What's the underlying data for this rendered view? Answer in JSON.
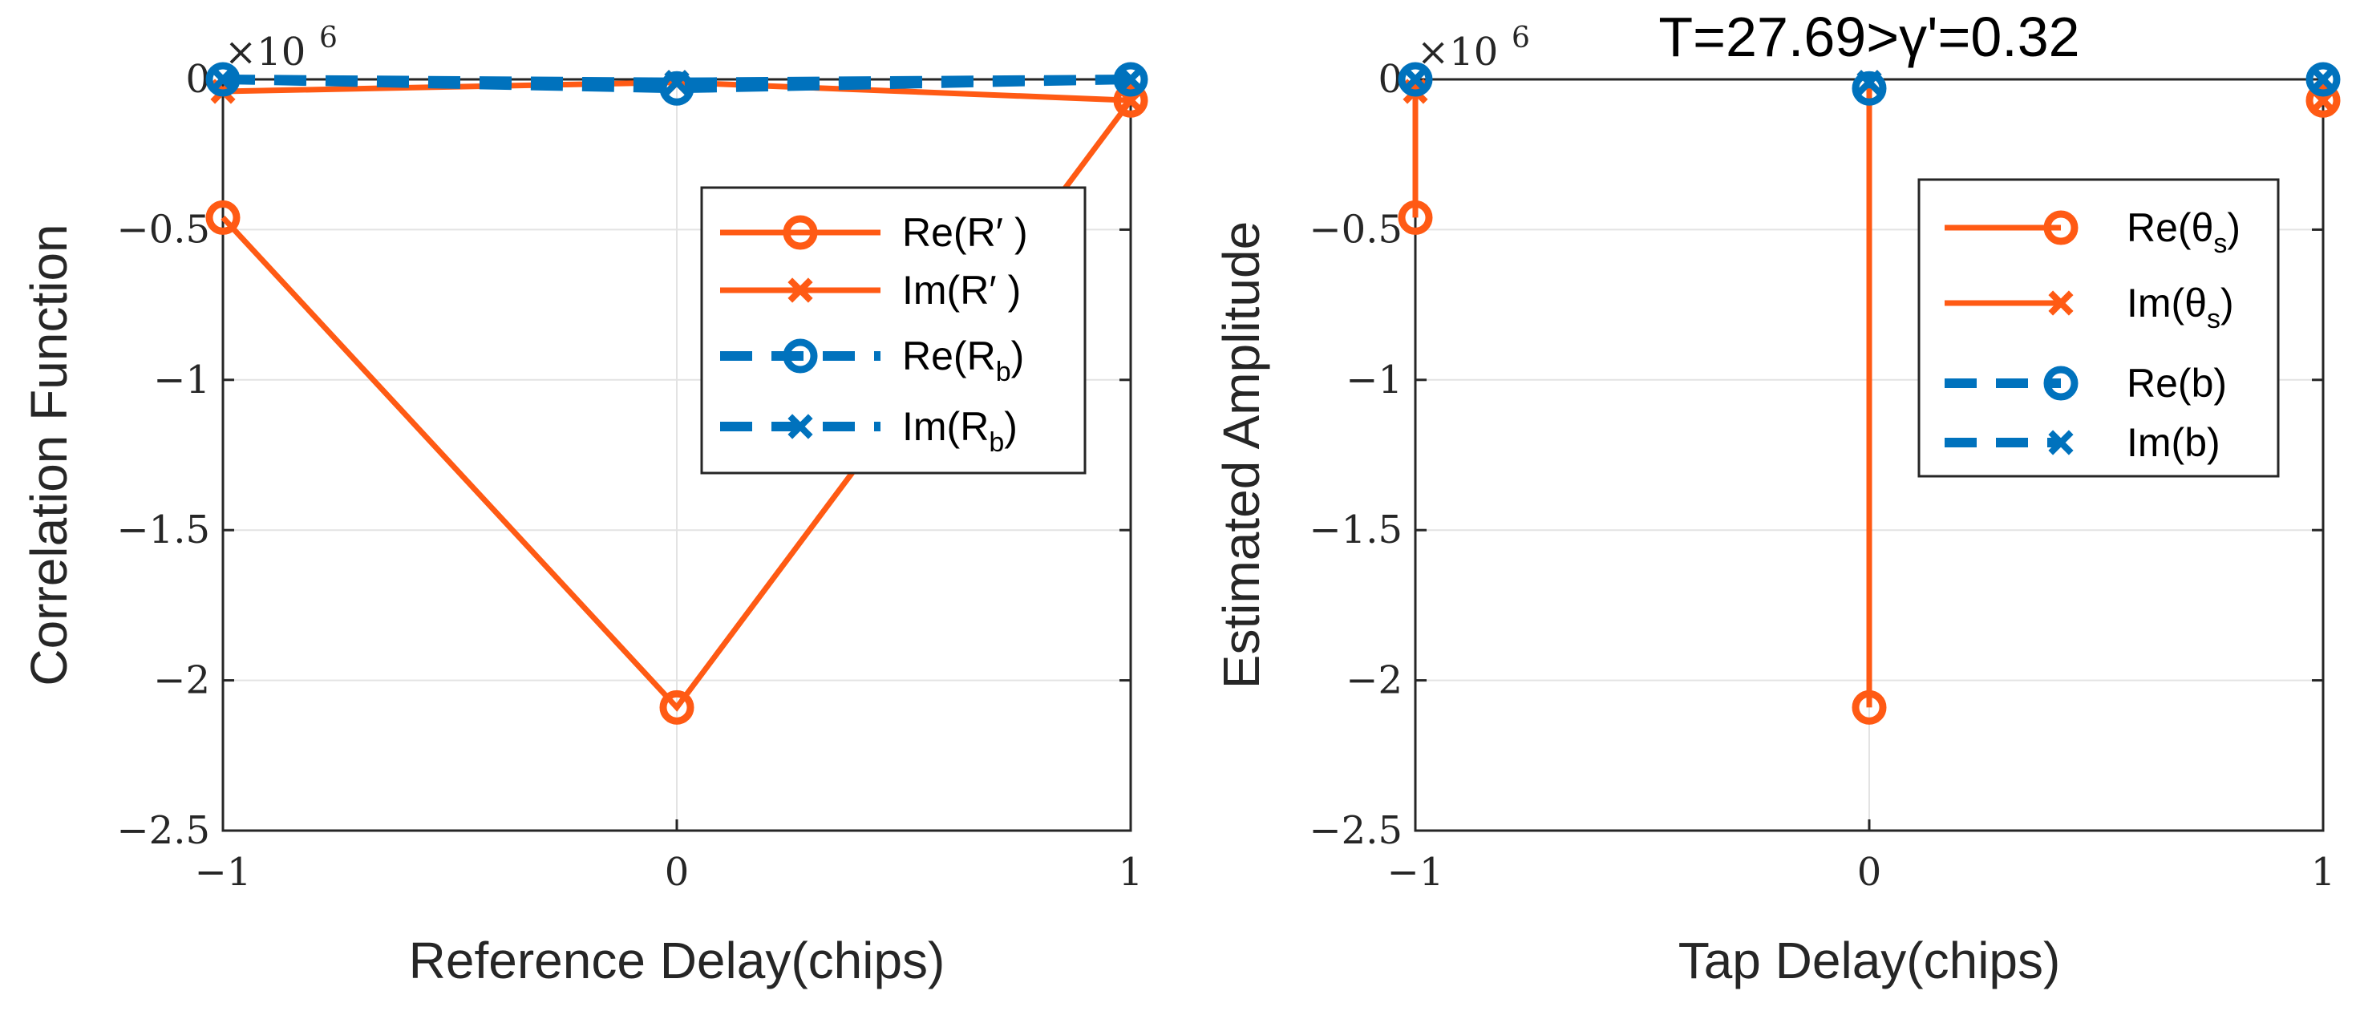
{
  "colors": {
    "orange": "#FF5A14",
    "blue": "#0072BD",
    "grid": "#E3E3E3",
    "axis": "#262626"
  },
  "chart_data": [
    {
      "type": "line",
      "title": "",
      "xlabel": "Reference Delay(chips)",
      "ylabel": "Correlation Function",
      "exponent_label": "×10",
      "exponent_power": "6",
      "xlim": [
        -1,
        1
      ],
      "ylim": [
        -2.5,
        0
      ],
      "xticks": [
        -1,
        0,
        1
      ],
      "xtick_labels": [
        "−1",
        "0",
        "1"
      ],
      "yticks": [
        0,
        -0.5,
        -1,
        -1.5,
        -2,
        -2.5
      ],
      "ytick_labels": [
        "0",
        "−0.5",
        "−1",
        "−1.5",
        "−2",
        "−2.5"
      ],
      "grid": true,
      "legend_position": "top-right",
      "x": [
        -1,
        0,
        1
      ],
      "series": [
        {
          "name": "Re(R′ )",
          "legend_main": "Re(R′  )",
          "legend_sub": "",
          "color": "#FF5A14",
          "dash": false,
          "marker": "o",
          "values": [
            -0.46,
            -2.09,
            -0.07
          ]
        },
        {
          "name": "Im(R′ )",
          "legend_main": "Im(R′  )",
          "legend_sub": "",
          "color": "#FF5A14",
          "dash": false,
          "marker": "x",
          "values": [
            -0.04,
            -0.01,
            -0.07
          ]
        },
        {
          "name": "Re(Rb)",
          "legend_main": "Re(R",
          "legend_sub": "b",
          "legend_close": ")",
          "color": "#0072BD",
          "dash": true,
          "marker": "o",
          "values": [
            0,
            -0.03,
            0
          ]
        },
        {
          "name": "Im(Rb)",
          "legend_main": "Im(R",
          "legend_sub": "b",
          "legend_close": ")",
          "color": "#0072BD",
          "dash": true,
          "marker": "x",
          "values": [
            0,
            -0.01,
            0
          ]
        }
      ]
    },
    {
      "type": "stem",
      "title": "T=27.69>γ'=0.32",
      "xlabel": "Tap Delay(chips)",
      "ylabel": "Estimated Amplitude",
      "exponent_label": "×10",
      "exponent_power": "6",
      "xlim": [
        -1,
        1
      ],
      "ylim": [
        -2.5,
        0
      ],
      "xticks": [
        -1,
        0,
        1
      ],
      "xtick_labels": [
        "−1",
        "0",
        "1"
      ],
      "yticks": [
        0,
        -0.5,
        -1,
        -1.5,
        -2,
        -2.5
      ],
      "ytick_labels": [
        "0",
        "−0.5",
        "−1",
        "−1.5",
        "−2",
        "−2.5"
      ],
      "grid": true,
      "legend_position": "top-right",
      "x": [
        -1,
        0,
        1
      ],
      "series": [
        {
          "name": "Re(θs)",
          "legend_main": "Re(θ",
          "legend_sub": "s",
          "legend_close": ")",
          "color": "#FF5A14",
          "dash": false,
          "marker": "o",
          "values": [
            -0.46,
            -2.09,
            -0.07
          ]
        },
        {
          "name": "Im(θs)",
          "legend_main": "Im(θ",
          "legend_sub": "s",
          "legend_close": ")",
          "color": "#FF5A14",
          "dash": false,
          "marker": "x",
          "values": [
            -0.04,
            -0.01,
            -0.07
          ]
        },
        {
          "name": "Re(b)",
          "legend_main": "Re(b)",
          "legend_sub": "",
          "color": "#0072BD",
          "dash": true,
          "marker": "o",
          "values": [
            0,
            -0.03,
            0
          ]
        },
        {
          "name": "Im(b)",
          "legend_main": "Im(b)",
          "legend_sub": "",
          "color": "#0072BD",
          "dash": true,
          "marker": "x",
          "values": [
            0,
            -0.01,
            0
          ]
        }
      ]
    }
  ]
}
